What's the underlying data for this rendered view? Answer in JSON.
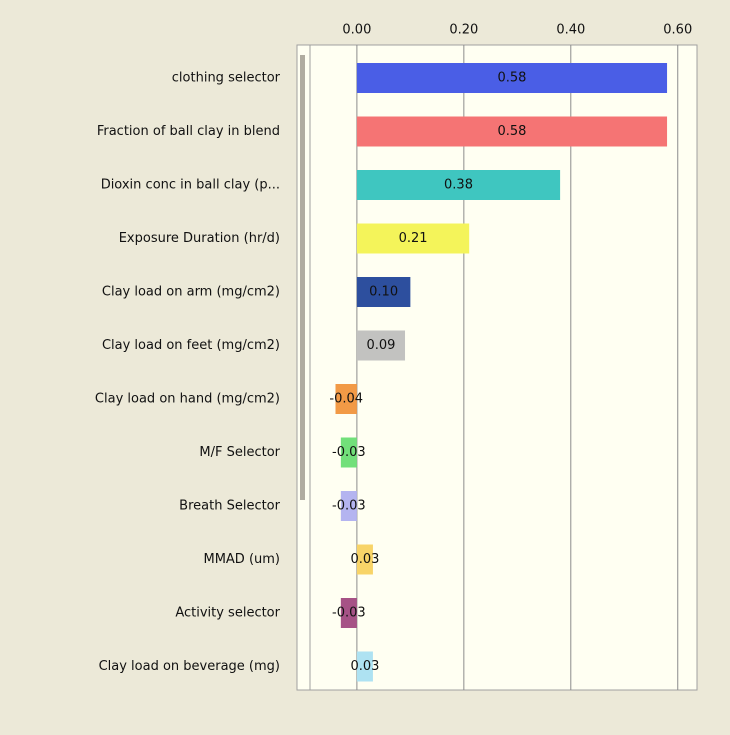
{
  "chart_data": {
    "type": "hbar",
    "categories": [
      "clothing selector",
      "Fraction of ball clay in blend",
      "Dioxin conc in ball clay (p...",
      "Exposure Duration (hr/d)",
      "Clay load on arm (mg/cm2)",
      "Clay load on feet (mg/cm2)",
      "Clay load on hand (mg/cm2)",
      "M/F Selector",
      "Breath Selector",
      "MMAD (um)",
      "Activity selector",
      "Clay load on beverage (mg)"
    ],
    "values": [
      0.58,
      0.58,
      0.38,
      0.21,
      0.1,
      0.09,
      -0.04,
      -0.03,
      -0.03,
      0.03,
      -0.03,
      0.03
    ],
    "value_labels": [
      "0.58",
      "0.58",
      "0.38",
      "0.21",
      "0.10",
      "0.09",
      "-0.04",
      "-0.03",
      "-0.03",
      "0.03",
      "-0.03",
      "0.03"
    ],
    "colors": [
      "#4a5ee6",
      "#f57474",
      "#3fc6c0",
      "#f4f45a",
      "#2d4f9e",
      "#c2c2c0",
      "#f29a46",
      "#72e07a",
      "#b4b4f0",
      "#f8d468",
      "#a65286",
      "#aee2f2"
    ],
    "xlim": [
      -0.112,
      0.636
    ],
    "xticks": [
      {
        "value": 0,
        "label": "0.00"
      },
      {
        "value": 0.2,
        "label": "0.20"
      },
      {
        "value": 0.4,
        "label": "0.40"
      },
      {
        "value": 0.6,
        "label": "0.60"
      }
    ],
    "grid": true
  }
}
